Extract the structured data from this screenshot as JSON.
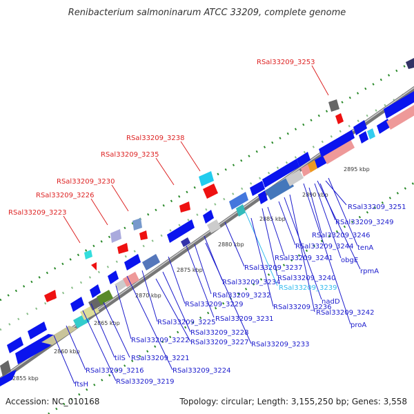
{
  "title": "Renibacterium salmoninarum ATCC 33209, complete genome",
  "footer": {
    "accession": "Accession: NC_010168",
    "summary": "Topology: circular; Length: 3,155,250 bp; Genes: 3,558"
  },
  "colors": {
    "label_red": "#dd2222",
    "label_blue": "#1a1acc",
    "label_cyan": "#33bbee",
    "gene_blue": "#0a14ee",
    "gene_red": "#ee1111",
    "backbone": "#888888",
    "dots": "#2a8a2a"
  },
  "ticks": [
    "2855 kbp",
    "2860 kbp",
    "2865 kbp",
    "2870 kbp",
    "2875 kbp",
    "2880 kbp",
    "2885 kbp",
    "2890 kbp",
    "2895 kbp"
  ],
  "labels_top": [
    "RSal33209_3253",
    "RSal33209_3238",
    "RSal33209_3235",
    "RSal33209_3230",
    "RSal33209_3226",
    "RSal33209_3223"
  ],
  "labels_bottom": [
    "RSal33209_3251",
    "RSal33209_3249",
    "RSal33209_3246",
    "tenA",
    "RSal33209_3244",
    "obgE",
    "RSal33209_3241",
    "rpmA",
    "RSal33209_3237",
    "RSal33209_3240",
    "RSal33209_3234",
    "RSal33209_3239",
    "RSal33209_3232",
    "nadD",
    "RSal33209_3236",
    "RSal33209_3229",
    "RSal33209_3242",
    "RSal33209_3231",
    "RSal33209_3225",
    "proA",
    "RSal33209_3228",
    "RSal33209_3222",
    "RSal33209_3227",
    "RSal33209_3233",
    "RSal33209_3221",
    "tilS",
    "RSal33209_3224",
    "RSal33209_3216",
    "RSal33209_3219",
    "ftsH"
  ]
}
